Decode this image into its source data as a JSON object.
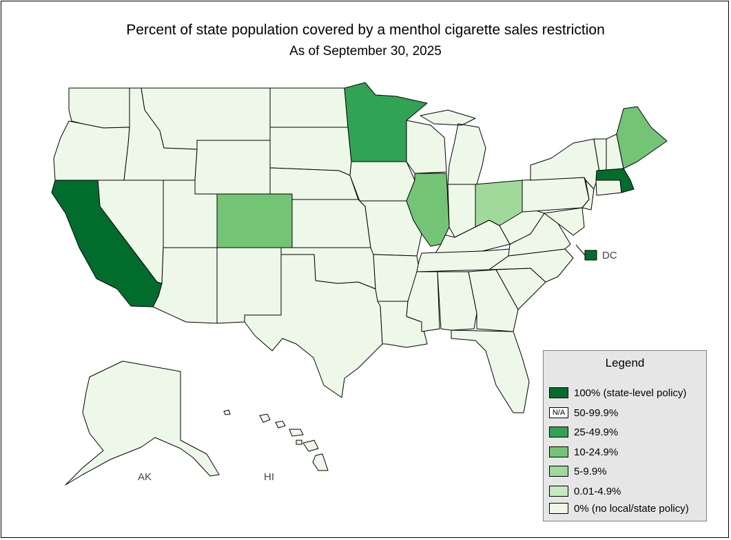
{
  "title": "Percent of state population covered by a menthol cigarette sales restriction",
  "subtitle": "As of September 30, 2025",
  "labels": {
    "dc": "DC",
    "ak": "AK",
    "hi": "HI"
  },
  "colors": {
    "c100": "#006d2c",
    "c25": "#31a354",
    "c10": "#74c476",
    "c5": "#a1d99b",
    "c001": "#c7e9c0",
    "c0": "#edf8e9"
  },
  "legend": {
    "title": "Legend",
    "items": [
      {
        "label": "100% (state-level policy)",
        "color": "#006d2c",
        "swatch_text": ""
      },
      {
        "label": "50-99.9%",
        "color": "#ffffff",
        "swatch_text": "N/A"
      },
      {
        "label": "25-49.9%",
        "color": "#31a354",
        "swatch_text": ""
      },
      {
        "label": "10-24.9%",
        "color": "#74c476",
        "swatch_text": ""
      },
      {
        "label": "5-9.9%",
        "color": "#a1d99b",
        "swatch_text": ""
      },
      {
        "label": "0.01-4.9%",
        "color": "#c7e9c0",
        "swatch_text": ""
      },
      {
        "label": "0% (no local/state policy)",
        "color": "#edf8e9",
        "swatch_text": ""
      }
    ]
  },
  "states": [
    {
      "id": "CA",
      "category": "100% (state-level policy)",
      "color": "#006d2c"
    },
    {
      "id": "MA",
      "category": "100% (state-level policy)",
      "color": "#006d2c"
    },
    {
      "id": "DC",
      "category": "100% (state-level policy)",
      "color": "#006d2c"
    },
    {
      "id": "MN",
      "category": "25-49.9%",
      "color": "#31a354"
    },
    {
      "id": "CO",
      "category": "10-24.9%",
      "color": "#74c476"
    },
    {
      "id": "IL",
      "category": "10-24.9%",
      "color": "#74c476"
    },
    {
      "id": "ME",
      "category": "10-24.9%",
      "color": "#74c476"
    },
    {
      "id": "OH",
      "category": "5-9.9%",
      "color": "#a1d99b"
    }
  ]
}
